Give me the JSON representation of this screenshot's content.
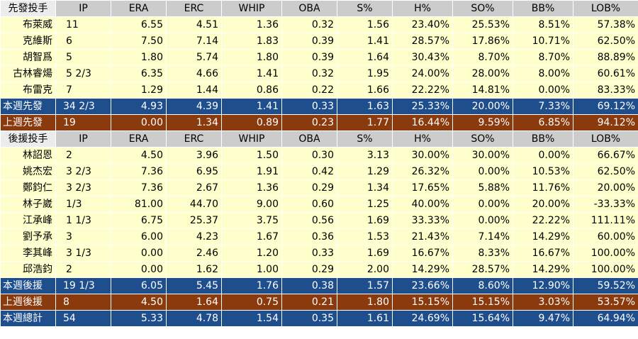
{
  "starters": {
    "header": [
      "先發投手",
      "IP",
      "ERA",
      "ERC",
      "WHIP",
      "OBA",
      "S%",
      "H%",
      "SO%",
      "BB%",
      "LOB%"
    ],
    "rows": [
      [
        "布萊威",
        "11",
        "6.55",
        "4.51",
        "1.36",
        "0.32",
        "1.56",
        "23.40%",
        "25.53%",
        "8.51%",
        "57.38%"
      ],
      [
        "克維斯",
        "6",
        "7.50",
        "7.14",
        "1.83",
        "0.39",
        "1.41",
        "28.57%",
        "17.86%",
        "10.71%",
        "62.50%"
      ],
      [
        "胡智爲",
        "5",
        "1.80",
        "5.74",
        "1.80",
        "0.39",
        "1.64",
        "30.43%",
        "8.70%",
        "8.70%",
        "88.89%"
      ],
      [
        "古林睿煬",
        "5 2/3",
        "6.35",
        "4.66",
        "1.41",
        "0.32",
        "1.95",
        "24.00%",
        "28.00%",
        "8.00%",
        "60.61%"
      ],
      [
        "布雷克",
        "7",
        "1.29",
        "1.44",
        "0.86",
        "0.22",
        "1.66",
        "22.22%",
        "14.81%",
        "0.00%",
        "83.33%"
      ]
    ],
    "this_week": [
      "本週先發",
      "34 2/3",
      "4.93",
      "4.39",
      "1.41",
      "0.33",
      "1.63",
      "25.33%",
      "20.00%",
      "7.33%",
      "69.12%"
    ],
    "last_week": [
      "上週先發",
      "19",
      "0.00",
      "1.34",
      "0.89",
      "0.23",
      "1.77",
      "16.44%",
      "9.59%",
      "6.85%",
      "94.12%"
    ]
  },
  "relievers": {
    "header": [
      "後援投手",
      "IP",
      "ERA",
      "ERC",
      "WHIP",
      "OBA",
      "S%",
      "H%",
      "SO%",
      "BB%",
      "LOB%"
    ],
    "rows": [
      [
        "林詔恩",
        "2",
        "4.50",
        "3.96",
        "1.50",
        "0.30",
        "3.13",
        "30.00%",
        "30.00%",
        "0.00%",
        "66.67%"
      ],
      [
        "姚杰宏",
        "3 2/3",
        "7.36",
        "6.95",
        "1.91",
        "0.42",
        "1.29",
        "26.32%",
        "0.00%",
        "10.53%",
        "62.50%"
      ],
      [
        "鄭鈞仁",
        "3 2/3",
        "7.36",
        "2.67",
        "1.36",
        "0.29",
        "1.34",
        "17.65%",
        "5.88%",
        "11.76%",
        "20.00%"
      ],
      [
        "林子崴",
        "1/3",
        "81.00",
        "44.70",
        "9.00",
        "0.60",
        "1.25",
        "40.00%",
        "0.00%",
        "20.00%",
        "-33.33%"
      ],
      [
        "江承峰",
        "1 1/3",
        "6.75",
        "25.37",
        "3.75",
        "0.56",
        "1.69",
        "33.33%",
        "0.00%",
        "22.22%",
        "111.11%"
      ],
      [
        "劉予承",
        "3",
        "6.00",
        "4.23",
        "1.67",
        "0.36",
        "1.53",
        "21.43%",
        "7.14%",
        "14.29%",
        "60.00%"
      ],
      [
        "李其峰",
        "3 1/3",
        "0.00",
        "2.46",
        "1.20",
        "0.33",
        "1.69",
        "16.67%",
        "8.33%",
        "16.67%",
        "100.00%"
      ],
      [
        "邱浩鈞",
        "2",
        "0.00",
        "1.62",
        "1.00",
        "0.29",
        "2.00",
        "14.29%",
        "28.57%",
        "14.29%",
        "100.00%"
      ]
    ],
    "this_week": [
      "本週後援",
      "19 1/3",
      "6.05",
      "5.45",
      "1.76",
      "0.38",
      "1.57",
      "23.66%",
      "8.60%",
      "12.90%",
      "59.52%"
    ],
    "last_week": [
      "上週後援",
      "8",
      "4.50",
      "1.64",
      "0.75",
      "0.21",
      "1.80",
      "15.15%",
      "15.15%",
      "3.03%",
      "53.57%"
    ]
  },
  "total": [
    "本週總計",
    "54",
    "5.33",
    "4.78",
    "1.54",
    "0.35",
    "1.61",
    "24.69%",
    "15.64%",
    "9.47%",
    "64.94%"
  ],
  "colors": {
    "header_bg": "#cccccc",
    "header_name_bg": "#ececec",
    "row_bg": "#ffffcc",
    "blue_summary": "#1f4e8c",
    "brown_summary": "#8b3a0e"
  }
}
